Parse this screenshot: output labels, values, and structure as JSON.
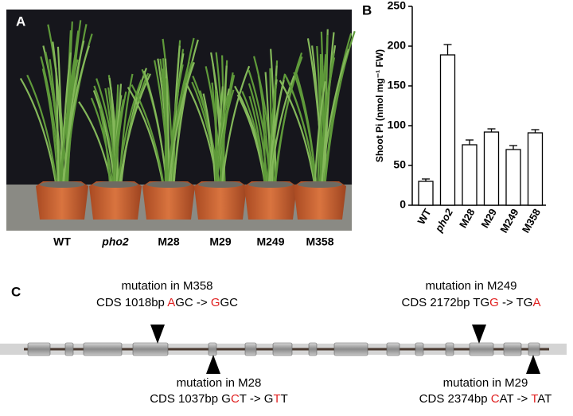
{
  "panel_labels": [
    "A",
    "B",
    "C"
  ],
  "photo": {
    "labels": [
      "WT",
      "pho2",
      "M28",
      "M29",
      "M249",
      "M358"
    ]
  },
  "chart_data": {
    "type": "bar",
    "ylabel": "Shoot Pi (nmol mg⁻¹ FW)",
    "categories": [
      "WT",
      "pho2",
      "M28",
      "M29",
      "M249",
      "M358"
    ],
    "values": [
      30,
      189,
      76,
      92,
      70,
      91
    ],
    "errors": [
      3,
      13,
      6,
      4,
      5,
      4
    ],
    "color": "#ffffff",
    "ylim": [
      0,
      250
    ],
    "yticks": [
      0,
      50,
      100,
      150,
      200,
      250
    ],
    "grid": false
  },
  "mutations": [
    {
      "title": "mutation in M358",
      "parts": [
        {
          "text": "CDS 1018bp ",
          "color": "#000000"
        },
        {
          "text": "A",
          "color": "#e02020"
        },
        {
          "text": "GC -> ",
          "color": "#000000"
        },
        {
          "text": "G",
          "color": "#e02020"
        },
        {
          "text": "GC",
          "color": "#000000"
        }
      ]
    },
    {
      "title": "mutation in M28",
      "parts": [
        {
          "text": "CDS 1037bp G",
          "color": "#000000"
        },
        {
          "text": "C",
          "color": "#e02020"
        },
        {
          "text": "T -> G",
          "color": "#000000"
        },
        {
          "text": "T",
          "color": "#e02020"
        },
        {
          "text": "T",
          "color": "#000000"
        }
      ]
    },
    {
      "title": "mutation in M249",
      "parts": [
        {
          "text": "CDS 2172bp TG",
          "color": "#000000"
        },
        {
          "text": "G",
          "color": "#e02020"
        },
        {
          "text": " -> TG",
          "color": "#000000"
        },
        {
          "text": "A",
          "color": "#e02020"
        }
      ]
    },
    {
      "title": "mutation in M29",
      "parts": [
        {
          "text": "CDS 2374bp ",
          "color": "#000000"
        },
        {
          "text": "C",
          "color": "#e02020"
        },
        {
          "text": "AT -> ",
          "color": "#000000"
        },
        {
          "text": "T",
          "color": "#e02020"
        },
        {
          "text": "AT",
          "color": "#000000"
        }
      ]
    }
  ]
}
